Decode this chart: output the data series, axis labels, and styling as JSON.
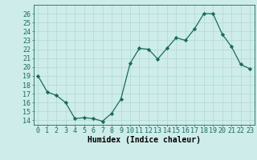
{
  "x": [
    0,
    1,
    2,
    3,
    4,
    5,
    6,
    7,
    8,
    9,
    10,
    11,
    12,
    13,
    14,
    15,
    16,
    17,
    18,
    19,
    20,
    21,
    22,
    23
  ],
  "y": [
    19,
    17.2,
    16.8,
    16,
    14.2,
    14.3,
    14.2,
    13.9,
    14.8,
    16.4,
    20.4,
    22.1,
    22,
    20.9,
    22.1,
    23.3,
    23,
    24.3,
    26,
    26,
    23.7,
    22.3,
    20.3,
    19.8
  ],
  "xlabel": "Humidex (Indice chaleur)",
  "xlim": [
    -0.5,
    23.5
  ],
  "ylim": [
    13.5,
    27
  ],
  "yticks": [
    14,
    15,
    16,
    17,
    18,
    19,
    20,
    21,
    22,
    23,
    24,
    25,
    26
  ],
  "xticks": [
    0,
    1,
    2,
    3,
    4,
    5,
    6,
    7,
    8,
    9,
    10,
    11,
    12,
    13,
    14,
    15,
    16,
    17,
    18,
    19,
    20,
    21,
    22,
    23
  ],
  "line_color": "#1a6b5a",
  "marker_color": "#1a6b5a",
  "bg_color": "#ceecea",
  "grid_color": "#aed8d5",
  "border_color": "#1a6b5a",
  "tick_fontsize": 6,
  "xlabel_fontsize": 7
}
